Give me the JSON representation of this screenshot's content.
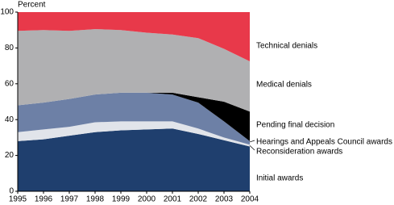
{
  "chart_data": {
    "type": "stacked_area",
    "y_label": "Percent",
    "x": [
      1995,
      1996,
      1997,
      1998,
      1999,
      2000,
      2001,
      2002,
      2003,
      2004
    ],
    "xlim": [
      1995,
      2004
    ],
    "xticks": [
      1995,
      1996,
      1997,
      1998,
      1999,
      2000,
      2001,
      2002,
      2003,
      2004
    ],
    "ylim": [
      0,
      100
    ],
    "yticks": [
      0,
      20,
      40,
      60,
      80,
      100
    ],
    "grid": false,
    "series": [
      {
        "name": "Initial awards",
        "color": "#1f3f6e",
        "values": [
          28,
          29,
          31,
          33,
          34,
          34.5,
          35,
          32,
          28.5,
          25
        ]
      },
      {
        "name": "Reconsideration awards",
        "color": "#e1e4ea",
        "values": [
          5,
          5.5,
          5,
          5.5,
          5,
          4.5,
          4,
          3,
          1.5,
          1
        ]
      },
      {
        "name": "Hearings and Appeals Council awards",
        "color": "#6d80a6",
        "values": [
          15,
          15,
          15.5,
          15.5,
          16,
          16,
          15,
          14.5,
          9,
          2
        ]
      },
      {
        "name": "Pending final decision",
        "color": "#000000",
        "values": [
          0,
          0,
          0,
          0,
          0,
          0,
          1,
          3,
          11,
          16.5
        ]
      },
      {
        "name": "Medical denials",
        "color": "#b0b0b2",
        "values": [
          41.5,
          40.5,
          38,
          36.5,
          35,
          33.5,
          32.5,
          33,
          29.5,
          28
        ]
      },
      {
        "name": "Technical denials",
        "color": "#e8394a",
        "values": [
          10.5,
          10,
          10.5,
          9.5,
          10,
          11.5,
          12.5,
          14.5,
          20.5,
          27.5
        ]
      }
    ]
  }
}
